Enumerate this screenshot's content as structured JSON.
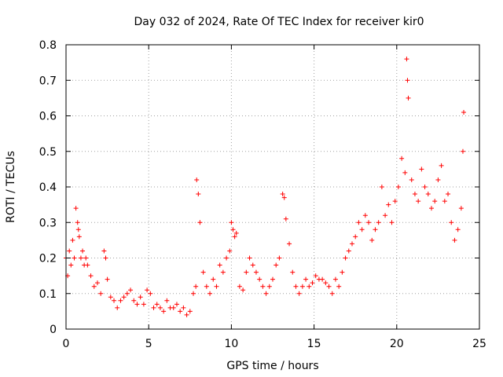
{
  "chart_data": {
    "type": "scatter",
    "title": "Day 032 of 2024, Rate Of TEC Index for receiver kir0",
    "xlabel": "GPS time / hours",
    "ylabel": "ROTI / TECUs",
    "xlim": [
      0,
      25
    ],
    "ylim": [
      0,
      0.8
    ],
    "x_ticks": [
      0,
      5,
      10,
      15,
      20,
      25
    ],
    "x_tick_labels": [
      "0",
      "5",
      "10",
      "15",
      "20",
      "25"
    ],
    "y_ticks": [
      0,
      0.1,
      0.2,
      0.3,
      0.4,
      0.5,
      0.6,
      0.7,
      0.8
    ],
    "y_tick_labels": [
      "0",
      "0.1",
      "0.2",
      "0.3",
      "0.4",
      "0.5",
      "0.6",
      "0.7",
      "0.8"
    ],
    "grid": true,
    "marker": "plus",
    "color": "#ff0000",
    "series": [
      {
        "name": "ROTI",
        "x": [
          0.0,
          0.1,
          0.2,
          0.3,
          0.4,
          0.5,
          0.6,
          0.7,
          0.75,
          0.8,
          0.9,
          1.0,
          1.1,
          1.2,
          1.3,
          1.5,
          1.7,
          1.9,
          2.1,
          2.3,
          2.4,
          2.5,
          2.7,
          2.9,
          3.1,
          3.3,
          3.5,
          3.7,
          3.9,
          4.1,
          4.3,
          4.5,
          4.7,
          4.9,
          5.1,
          5.3,
          5.5,
          5.7,
          5.9,
          6.1,
          6.3,
          6.5,
          6.7,
          6.9,
          7.1,
          7.3,
          7.5,
          7.7,
          7.85,
          7.9,
          8.0,
          8.1,
          8.3,
          8.5,
          8.7,
          8.9,
          9.1,
          9.3,
          9.5,
          9.7,
          9.9,
          10.0,
          10.1,
          10.2,
          10.3,
          10.5,
          10.7,
          10.9,
          11.1,
          11.3,
          11.5,
          11.7,
          11.9,
          12.1,
          12.3,
          12.5,
          12.7,
          12.9,
          13.1,
          13.2,
          13.3,
          13.5,
          13.7,
          13.9,
          14.1,
          14.3,
          14.5,
          14.7,
          14.9,
          15.1,
          15.3,
          15.5,
          15.7,
          15.9,
          16.1,
          16.3,
          16.5,
          16.7,
          16.9,
          17.1,
          17.3,
          17.5,
          17.7,
          17.9,
          18.1,
          18.3,
          18.5,
          18.7,
          18.9,
          19.1,
          19.3,
          19.5,
          19.7,
          19.9,
          20.1,
          20.3,
          20.5,
          20.6,
          20.65,
          20.7,
          20.9,
          21.1,
          21.3,
          21.5,
          21.7,
          21.9,
          22.1,
          22.3,
          22.5,
          22.7,
          22.9,
          23.1,
          23.3,
          23.5,
          23.7,
          23.9,
          24.0,
          24.05
        ],
        "y": [
          0.2,
          0.15,
          0.22,
          0.18,
          0.25,
          0.2,
          0.34,
          0.3,
          0.28,
          0.26,
          0.2,
          0.22,
          0.18,
          0.2,
          0.18,
          0.15,
          0.12,
          0.13,
          0.1,
          0.22,
          0.2,
          0.14,
          0.09,
          0.08,
          0.06,
          0.08,
          0.09,
          0.1,
          0.11,
          0.08,
          0.07,
          0.09,
          0.07,
          0.11,
          0.1,
          0.06,
          0.07,
          0.06,
          0.05,
          0.08,
          0.06,
          0.06,
          0.07,
          0.05,
          0.06,
          0.04,
          0.05,
          0.1,
          0.12,
          0.42,
          0.38,
          0.3,
          0.16,
          0.12,
          0.1,
          0.14,
          0.12,
          0.18,
          0.16,
          0.2,
          0.22,
          0.3,
          0.28,
          0.26,
          0.27,
          0.12,
          0.11,
          0.16,
          0.2,
          0.18,
          0.16,
          0.14,
          0.12,
          0.1,
          0.12,
          0.14,
          0.18,
          0.2,
          0.38,
          0.37,
          0.31,
          0.24,
          0.16,
          0.12,
          0.1,
          0.12,
          0.14,
          0.12,
          0.13,
          0.15,
          0.14,
          0.14,
          0.13,
          0.12,
          0.1,
          0.14,
          0.12,
          0.16,
          0.2,
          0.22,
          0.24,
          0.26,
          0.3,
          0.28,
          0.32,
          0.3,
          0.25,
          0.28,
          0.3,
          0.4,
          0.32,
          0.35,
          0.3,
          0.36,
          0.4,
          0.48,
          0.44,
          0.76,
          0.7,
          0.65,
          0.42,
          0.38,
          0.36,
          0.45,
          0.4,
          0.38,
          0.34,
          0.36,
          0.42,
          0.46,
          0.36,
          0.38,
          0.3,
          0.25,
          0.28,
          0.34,
          0.5,
          0.61
        ]
      }
    ]
  }
}
